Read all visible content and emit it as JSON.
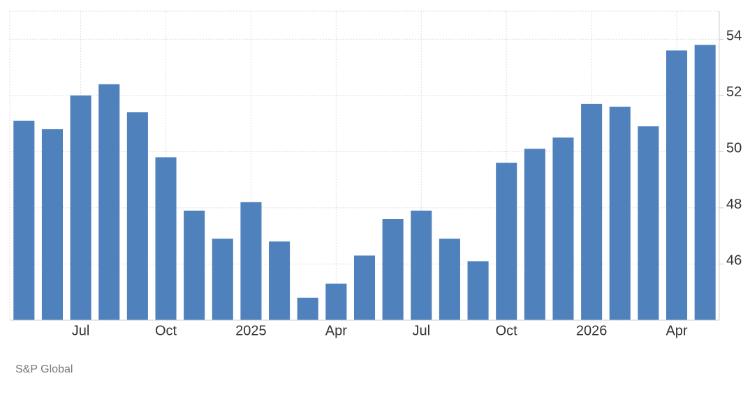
{
  "chart_data": {
    "type": "bar",
    "categories": [
      null,
      null,
      "Jul",
      null,
      null,
      "Oct",
      null,
      null,
      "2025",
      null,
      null,
      "Apr",
      null,
      null,
      "Jul",
      null,
      null,
      "Oct",
      null,
      null,
      "2026",
      null,
      null,
      "Apr",
      null
    ],
    "values": [
      51.1,
      50.8,
      52.0,
      52.4,
      51.4,
      49.8,
      47.9,
      46.9,
      48.2,
      46.8,
      44.8,
      45.3,
      46.3,
      47.6,
      47.9,
      46.9,
      46.1,
      49.6,
      50.1,
      50.5,
      51.7,
      51.6,
      50.9,
      53.6,
      53.8
    ],
    "color": "#4f81bd",
    "ylim": [
      44,
      55
    ],
    "yticks": [
      46,
      48,
      50,
      52,
      54
    ],
    "grid": true,
    "source": "S&P Global"
  }
}
